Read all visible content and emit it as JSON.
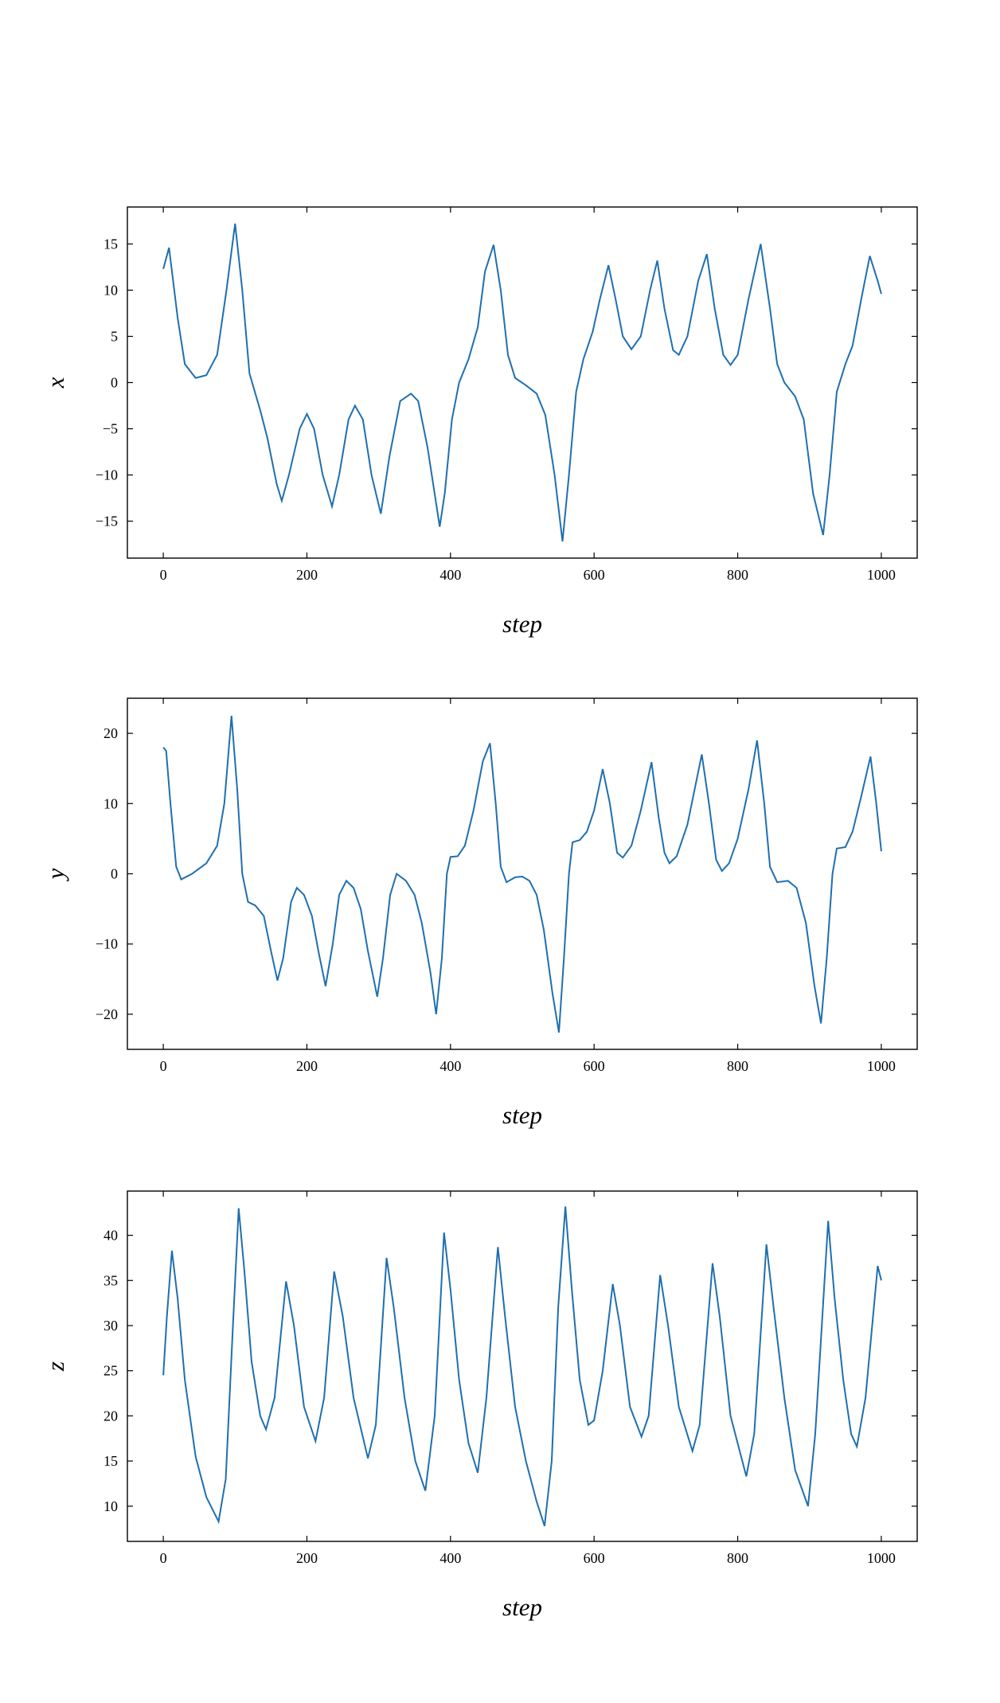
{
  "chart_data": [
    {
      "type": "line",
      "xlabel": "step",
      "ylabel": "x",
      "x": [
        0,
        8,
        20,
        30,
        45,
        60,
        75,
        88,
        100,
        110,
        120,
        135,
        145,
        158,
        165,
        175,
        190,
        200,
        210,
        222,
        235,
        245,
        258,
        267,
        278,
        290,
        303,
        315,
        330,
        345,
        355,
        368,
        385,
        392,
        402,
        412,
        425,
        438,
        448,
        460,
        470,
        480,
        490,
        505,
        520,
        532,
        545,
        556,
        565,
        575,
        585,
        598,
        608,
        620,
        630,
        640,
        652,
        665,
        678,
        688,
        698,
        710,
        718,
        730,
        745,
        757,
        768,
        780,
        790,
        800,
        815,
        832,
        845,
        855,
        865,
        880,
        892,
        905,
        919,
        928,
        938,
        950,
        960,
        972,
        984,
        995,
        1000
      ],
      "series": [
        {
          "color": "#1f6fb0",
          "values": [
            12.3,
            14.6,
            7,
            2,
            0.5,
            0.8,
            3,
            10,
            17.2,
            10,
            1,
            -3,
            -6,
            -11,
            -12.8,
            -10,
            -5,
            -3.4,
            -5,
            -10,
            -13.4,
            -10,
            -4,
            -2.5,
            -4,
            -10,
            -14.2,
            -8,
            -2,
            -1.2,
            -2,
            -7,
            -15.6,
            -12,
            -4,
            0,
            2.5,
            6,
            12,
            14.9,
            10,
            3,
            0.5,
            -0.3,
            -1.2,
            -3.5,
            -10,
            -17.2,
            -10,
            -1,
            2.5,
            5.5,
            9,
            12.7,
            9,
            5,
            3.6,
            5,
            10,
            13.2,
            8,
            3.5,
            3,
            5,
            11,
            13.9,
            8,
            3,
            1.9,
            3,
            9,
            15,
            8,
            2,
            0,
            -1.5,
            -4,
            -12,
            -16.5,
            -10,
            -1,
            2,
            4,
            9,
            13.7,
            11,
            9.6
          ]
        }
      ],
      "xlim": [
        -50,
        1050
      ],
      "ylim": [
        -19,
        19
      ],
      "xticks": [
        0,
        200,
        400,
        600,
        800,
        1000
      ],
      "yticks": [
        {
          "value": -15,
          "label": "−15"
        },
        {
          "value": -10,
          "label": "−10"
        },
        {
          "value": -5,
          "label": "−5"
        },
        0,
        5,
        10,
        15
      ]
    },
    {
      "type": "line",
      "xlabel": "step",
      "ylabel": "y",
      "x": [
        0,
        4,
        10,
        18,
        25,
        40,
        60,
        75,
        85,
        95,
        103,
        110,
        118,
        128,
        140,
        150,
        159,
        167,
        178,
        186,
        196,
        207,
        216,
        226,
        236,
        245,
        255,
        265,
        275,
        285,
        298,
        306,
        316,
        325,
        338,
        350,
        360,
        372,
        380,
        388,
        395,
        400,
        410,
        420,
        432,
        445,
        455,
        463,
        470,
        478,
        490,
        500,
        510,
        520,
        530,
        542,
        551,
        558,
        565,
        570,
        580,
        590,
        600,
        612,
        622,
        632,
        640,
        652,
        665,
        680,
        690,
        698,
        705,
        715,
        730,
        750,
        760,
        770,
        778,
        788,
        800,
        815,
        827,
        837,
        845,
        855,
        870,
        882,
        895,
        907,
        916,
        924,
        932,
        938,
        950,
        960,
        972,
        985,
        993,
        1000
      ],
      "series": [
        {
          "color": "#1f6fb0",
          "values": [
            18,
            17.5,
            10,
            1,
            -0.8,
            0,
            1.5,
            4,
            10,
            22.5,
            12,
            0,
            -4,
            -4.5,
            -6,
            -11,
            -15.2,
            -12,
            -4,
            -2,
            -3,
            -6,
            -11,
            -16,
            -10,
            -3,
            -1,
            -2,
            -5,
            -11,
            -17.5,
            -12,
            -3,
            0,
            -1,
            -3,
            -7,
            -14,
            -20,
            -12,
            0,
            2.4,
            2.5,
            4,
            9,
            16,
            18.6,
            10,
            1,
            -1.2,
            -0.5,
            -0.4,
            -1,
            -3,
            -8,
            -17,
            -22.6,
            -12,
            0,
            4.5,
            4.8,
            6,
            9,
            14.9,
            10,
            3,
            2.3,
            4,
            9,
            15.9,
            8,
            3,
            1.5,
            2.5,
            7,
            17,
            10,
            2,
            0.4,
            1.5,
            5,
            12,
            19,
            10,
            1,
            -1.2,
            -1,
            -2,
            -7,
            -16,
            -21.3,
            -12,
            0,
            3.6,
            3.8,
            6,
            11,
            16.7,
            10,
            3.2
          ]
        }
      ],
      "xlim": [
        -50,
        1050
      ],
      "ylim": [
        -25,
        25
      ],
      "xticks": [
        0,
        200,
        400,
        600,
        800,
        1000
      ],
      "yticks": [
        {
          "value": -20,
          "label": "−20"
        },
        {
          "value": -10,
          "label": "−10"
        },
        0,
        10,
        20
      ]
    },
    {
      "type": "line",
      "xlabel": "step",
      "ylabel": "z",
      "x": [
        0,
        5,
        12,
        20,
        30,
        45,
        60,
        77,
        87,
        97,
        105,
        113,
        123,
        135,
        143,
        155,
        171,
        182,
        196,
        212,
        224,
        238,
        250,
        265,
        285,
        296,
        311,
        321,
        336,
        351,
        365,
        378,
        391,
        400,
        412,
        425,
        438,
        450,
        466,
        476,
        490,
        505,
        520,
        531,
        541,
        550,
        560,
        569,
        580,
        592,
        600,
        612,
        626,
        636,
        650,
        666,
        676,
        692,
        703,
        718,
        737,
        747,
        765,
        775,
        790,
        812,
        823,
        840,
        850,
        865,
        880,
        898,
        908,
        926,
        935,
        947,
        958,
        966,
        978,
        995,
        1000
      ],
      "series": [
        {
          "color": "#1f6fb0",
          "values": [
            24.5,
            31,
            38.3,
            33,
            24,
            15.5,
            11,
            8.3,
            13,
            30,
            43,
            36,
            26,
            20,
            18.5,
            22,
            34.9,
            30,
            21,
            17.2,
            22,
            36,
            31,
            22,
            15.3,
            19,
            37.5,
            32,
            22,
            15,
            11.7,
            20,
            40.3,
            34,
            24,
            17,
            13.7,
            22,
            38.7,
            31,
            21,
            15,
            10.5,
            7.8,
            15,
            32,
            43.2,
            34,
            24,
            19,
            19.5,
            25,
            34.6,
            30,
            21,
            17.7,
            20,
            35.6,
            30,
            21,
            16.1,
            19,
            36.9,
            31,
            20,
            13.3,
            18,
            39,
            32,
            22,
            14,
            10,
            18,
            41.6,
            33,
            24,
            18,
            16.6,
            22,
            36.6,
            35
          ]
        }
      ],
      "xlim": [
        -50,
        1050
      ],
      "ylim": [
        6.1,
        44.9
      ],
      "xticks": [
        0,
        200,
        400,
        600,
        800,
        1000
      ],
      "yticks": [
        10,
        15,
        20,
        25,
        30,
        35,
        40
      ]
    }
  ]
}
